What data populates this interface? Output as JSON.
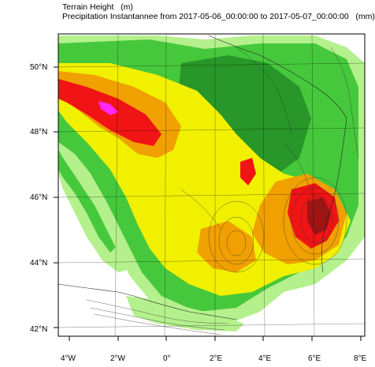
{
  "title": {
    "line1": "Terrain Height   (m)",
    "line2": "Precipitation Instantannee from 2017-05-06_00:00:00 to 2017-05-07_00:00:00   (mm)"
  },
  "map": {
    "lat_labels": [
      "50°N",
      "48°N",
      "46°N",
      "44°N",
      "42°N"
    ],
    "lon_labels": [
      "4°W",
      "2°W",
      "0°",
      "2°E",
      "4°E",
      "6°E",
      "8°E"
    ],
    "lat_range": [
      41.8,
      50.9
    ],
    "lon_range": [
      -4.1,
      8.1
    ],
    "precip_colors": {
      "light_green": "#b4f08c",
      "green": "#46c83c",
      "dark_green": "#289628",
      "yellow": "#f0f000",
      "orange": "#f0a000",
      "red": "#f01414",
      "dark_red": "#a01414",
      "magenta": "#ff28ff"
    }
  }
}
